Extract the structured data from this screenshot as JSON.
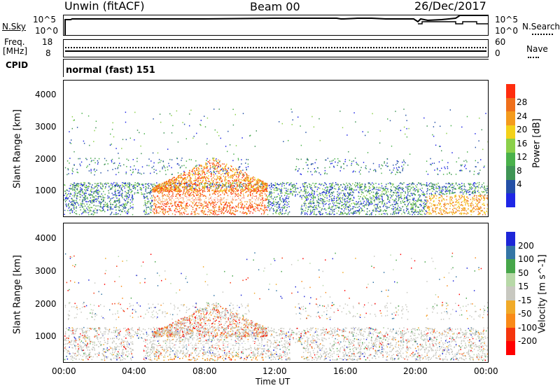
{
  "header": {
    "site": "Unwin (fitACF)",
    "beam": "Beam 00",
    "date": "26/Dec/2017"
  },
  "strip_panels": {
    "nsky": {
      "label": "N.Sky",
      "ticks": [
        "10^5",
        "10^0"
      ]
    },
    "nsearch": {
      "label": "N.Search",
      "ticks": [
        "10^5",
        "10^0"
      ]
    },
    "freq": {
      "label_line1": "Freq.",
      "label_line2": "[MHz]",
      "ticks": [
        "18",
        "8"
      ]
    },
    "nave": {
      "label": "Nave",
      "ticks": [
        "60",
        "0"
      ]
    },
    "cpid": {
      "label": "CPID",
      "value": "normal (fast) 151"
    }
  },
  "x_axis": {
    "label": "Time UT",
    "ticks": [
      "00:00",
      "04:00",
      "08:00",
      "12:00",
      "16:00",
      "20:00",
      "00:00"
    ]
  },
  "colors": {
    "power": [
      "#1f27e6",
      "#2450a6",
      "#3f9455",
      "#4ab14b",
      "#8bd04a",
      "#f3d11a",
      "#f49b1d",
      "#ef6f1b",
      "#ff2d0e"
    ],
    "velocity": [
      "#ff0000",
      "#f5350d",
      "#f98a18",
      "#f0aa29",
      "#c8c8c0",
      "#b7d8a7",
      "#47a64a",
      "#3475a5",
      "#1d26d8"
    ]
  },
  "chart_data": [
    {
      "type": "heatmap",
      "name": "power-panel",
      "ylabel": "Slant Range [km]",
      "ylim": [
        180,
        4600
      ],
      "y_ticks": [
        "1000",
        "2000",
        "3000",
        "4000"
      ],
      "x_ticks": [
        "00:00",
        "04:00",
        "08:00",
        "12:00",
        "16:00",
        "20:00",
        "00:00"
      ],
      "colorbar": {
        "label": "Power [dB]",
        "ticks": [
          "4",
          "8",
          "12",
          "16",
          "20",
          "24",
          "28"
        ]
      }
    },
    {
      "type": "heatmap",
      "name": "velocity-panel",
      "ylabel": "Slant Range [km]",
      "ylim": [
        180,
        4600
      ],
      "y_ticks": [
        "1000",
        "2000",
        "3000",
        "4000"
      ],
      "x_ticks": [
        "00:00",
        "04:00",
        "08:00",
        "12:00",
        "16:00",
        "20:00",
        "00:00"
      ],
      "colorbar": {
        "label": "Velocity [m s^-1]",
        "ticks": [
          "200",
          "100",
          "50",
          "15",
          "-15",
          "-50",
          "-100",
          "-200"
        ]
      }
    }
  ]
}
